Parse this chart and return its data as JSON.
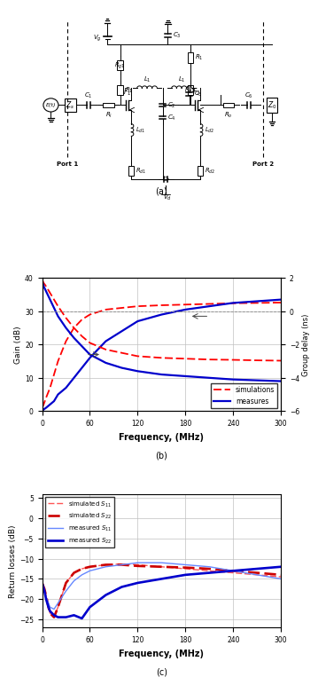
{
  "fig_width": 3.48,
  "fig_height": 7.38,
  "panel_a_label": "(a)",
  "panel_b_label": "(b)",
  "panel_c_label": "(c)",
  "plot_b": {
    "xlabel": "Frequency, (MHz)",
    "ylabel_left": "Gain (dB)",
    "ylabel_right": "Group delay (ns)",
    "xlim": [
      0,
      300
    ],
    "ylim_left": [
      0,
      40
    ],
    "ylim_right": [
      -6,
      2
    ],
    "xticks": [
      0,
      60,
      120,
      180,
      240,
      300
    ],
    "yticks_left": [
      0,
      10,
      20,
      30,
      40
    ],
    "yticks_right": [
      -6,
      -4,
      -2,
      0,
      2
    ],
    "grid_color": "#c0c0c0",
    "gain_sim_x": [
      0,
      2,
      5,
      10,
      15,
      20,
      30,
      40,
      50,
      60,
      80,
      100,
      120,
      150,
      180,
      210,
      240,
      270,
      300
    ],
    "gain_sim_y": [
      1,
      2,
      4,
      7,
      11,
      15,
      21,
      25,
      27.5,
      29,
      30.5,
      31,
      31.5,
      31.8,
      32,
      32.2,
      32.4,
      32.5,
      32.6
    ],
    "gain_meas_x": [
      0,
      2,
      5,
      10,
      15,
      20,
      30,
      40,
      50,
      60,
      80,
      100,
      120,
      150,
      180,
      210,
      240,
      270,
      300
    ],
    "gain_meas_y": [
      0,
      0.5,
      1,
      2,
      3,
      5,
      7,
      10,
      13,
      16,
      21,
      24,
      27,
      29,
      30.5,
      31.5,
      32.5,
      33,
      33.5
    ],
    "gd_sim_x": [
      0,
      2,
      5,
      10,
      15,
      20,
      30,
      40,
      50,
      60,
      80,
      100,
      120,
      150,
      180,
      210,
      240,
      270,
      300
    ],
    "gd_sim_y": [
      1.9,
      1.7,
      1.5,
      1.1,
      0.7,
      0.3,
      -0.4,
      -1.0,
      -1.5,
      -1.9,
      -2.3,
      -2.5,
      -2.7,
      -2.8,
      -2.85,
      -2.9,
      -2.92,
      -2.95,
      -2.97
    ],
    "gd_meas_x": [
      0,
      2,
      5,
      10,
      15,
      20,
      30,
      40,
      50,
      60,
      80,
      100,
      120,
      150,
      180,
      210,
      240,
      270,
      300
    ],
    "gd_meas_y": [
      1.8,
      1.5,
      1.2,
      0.7,
      0.2,
      -0.3,
      -1.0,
      -1.6,
      -2.1,
      -2.6,
      -3.1,
      -3.4,
      -3.6,
      -3.8,
      -3.9,
      -4.0,
      -4.1,
      -4.15,
      -4.2
    ]
  },
  "plot_c": {
    "xlabel": "Frequency, (MHz)",
    "ylabel": "Return losses (dB)",
    "xlim": [
      0,
      300
    ],
    "ylim": [
      -27,
      6
    ],
    "xticks": [
      0,
      60,
      120,
      180,
      240,
      300
    ],
    "yticks": [
      -25,
      -20,
      -15,
      -10,
      -5,
      0,
      5
    ],
    "grid_color": "#c0c0c0",
    "s11_sim_x": [
      0,
      3,
      6,
      8,
      10,
      15,
      20,
      30,
      40,
      50,
      60,
      80,
      100,
      120,
      150,
      180,
      210,
      240,
      270,
      300
    ],
    "s11_sim_y": [
      -16,
      -17.5,
      -20,
      -22,
      -23.5,
      -24.5,
      -22,
      -16,
      -13.5,
      -12.5,
      -12,
      -11.5,
      -11.3,
      -11.5,
      -12,
      -12.5,
      -13,
      -13.5,
      -14,
      -14.5
    ],
    "s22_sim_x": [
      0,
      3,
      6,
      8,
      10,
      15,
      20,
      30,
      40,
      50,
      60,
      80,
      100,
      120,
      150,
      180,
      210,
      240,
      270,
      300
    ],
    "s22_sim_y": [
      -16,
      -17.5,
      -20,
      -22,
      -23.5,
      -24.5,
      -22,
      -16,
      -13.5,
      -12.5,
      -12,
      -11.5,
      -11.5,
      -11.8,
      -12,
      -12.2,
      -12.5,
      -13,
      -13.5,
      -14
    ],
    "s11_meas_x": [
      0,
      3,
      6,
      8,
      10,
      15,
      20,
      30,
      40,
      50,
      60,
      80,
      100,
      120,
      150,
      180,
      210,
      240,
      270,
      300
    ],
    "s11_meas_y": [
      -16,
      -18,
      -20,
      -21,
      -22,
      -22.5,
      -21,
      -18,
      -15.5,
      -14,
      -13,
      -12,
      -11.5,
      -11,
      -11,
      -11.5,
      -12,
      -13,
      -14,
      -15
    ],
    "s22_meas_x": [
      0,
      3,
      5,
      8,
      10,
      15,
      20,
      30,
      40,
      50,
      60,
      80,
      100,
      120,
      150,
      180,
      210,
      240,
      270,
      300
    ],
    "s22_meas_y": [
      -16,
      -18,
      -20,
      -22,
      -23,
      -24,
      -24.5,
      -24.5,
      -24,
      -24.8,
      -22,
      -19,
      -17,
      -16,
      -15,
      -14,
      -13.5,
      -13,
      -12.5,
      -12
    ],
    "s11_sim_color": "#ff4444",
    "s22_sim_color": "#cc0000",
    "s11_meas_color": "#6688ff",
    "s22_meas_color": "#0000cc"
  }
}
